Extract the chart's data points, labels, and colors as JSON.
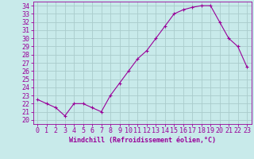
{
  "x": [
    0,
    1,
    2,
    3,
    4,
    5,
    6,
    7,
    8,
    9,
    10,
    11,
    12,
    13,
    14,
    15,
    16,
    17,
    18,
    19,
    20,
    21,
    22,
    23
  ],
  "y": [
    22.5,
    22.0,
    21.5,
    20.5,
    22.0,
    22.0,
    21.5,
    21.0,
    23.0,
    24.5,
    26.0,
    27.5,
    28.5,
    30.0,
    31.5,
    33.0,
    33.5,
    33.8,
    34.0,
    34.0,
    32.0,
    30.0,
    29.0,
    26.5
  ],
  "line_color": "#990099",
  "marker": "+",
  "marker_size": 3,
  "bg_color": "#c8eaea",
  "grid_color": "#aacccc",
  "xlabel": "Windchill (Refroidissement éolien,°C)",
  "xlabel_fontsize": 6,
  "ylabel_ticks": [
    20,
    21,
    22,
    23,
    24,
    25,
    26,
    27,
    28,
    29,
    30,
    31,
    32,
    33,
    34
  ],
  "ylim": [
    19.5,
    34.5
  ],
  "xlim": [
    -0.5,
    23.5
  ],
  "tick_fontsize": 6,
  "tick_color": "#990099",
  "spine_color": "#990099"
}
